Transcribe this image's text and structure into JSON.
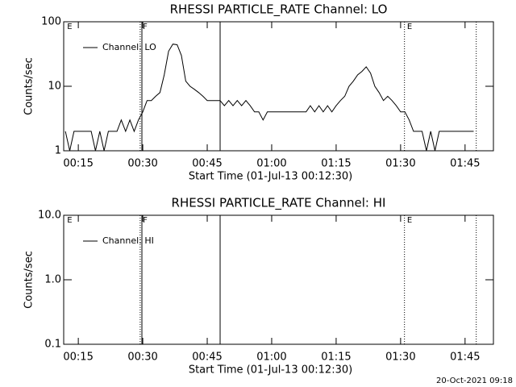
{
  "chart_data": [
    {
      "type": "line",
      "title": "RHESSI PARTICLE_RATE Channel: LO",
      "xlabel": "Start Time (01-Jul-13 00:12:30)",
      "ylabel": "Counts/sec",
      "ylog": true,
      "ylim": [
        1,
        100
      ],
      "yticks": [
        1,
        10,
        100
      ],
      "xlim": [
        11.6,
        111.6
      ],
      "xticks": [
        {
          "value": 15,
          "label": "00:15"
        },
        {
          "value": 30,
          "label": "00:30"
        },
        {
          "value": 45,
          "label": "00:45"
        },
        {
          "value": 60,
          "label": "01:00"
        },
        {
          "value": 75,
          "label": "01:15"
        },
        {
          "value": 90,
          "label": "01:30"
        },
        {
          "value": 105,
          "label": "01:45"
        }
      ],
      "legend": "top-left",
      "vlines": [
        {
          "x": 29.4,
          "style": "dotted"
        },
        {
          "x": 29.8,
          "style": "solid"
        },
        {
          "x": 48.0,
          "style": "solid"
        },
        {
          "x": 90.9,
          "style": "dotted"
        },
        {
          "x": 107.6,
          "style": "dotted"
        }
      ],
      "annotations": [
        {
          "text": "E",
          "x": 12.4
        },
        {
          "text": "F",
          "x": 30.0
        },
        {
          "text": "E",
          "x": 91.5
        }
      ],
      "series": [
        {
          "name": "Channel: LO",
          "color": "#000000",
          "x": [
            12,
            13,
            14,
            15,
            16,
            17,
            18,
            19,
            20,
            21,
            22,
            23,
            24,
            25,
            26,
            27,
            28,
            29,
            30,
            31,
            32,
            33,
            34,
            35,
            36,
            37,
            38,
            39,
            40,
            41,
            42,
            43,
            44,
            45,
            46,
            47,
            48,
            49,
            50,
            51,
            52,
            53,
            54,
            55,
            56,
            57,
            58,
            59,
            60,
            61,
            62,
            63,
            64,
            65,
            66,
            67,
            68,
            69,
            70,
            71,
            72,
            73,
            74,
            75,
            76,
            77,
            78,
            79,
            80,
            81,
            82,
            83,
            84,
            85,
            86,
            87,
            88,
            89,
            90,
            91,
            92,
            93,
            94,
            95,
            96,
            97,
            98,
            99,
            100,
            101,
            102,
            103,
            104,
            105,
            106,
            107
          ],
          "values": [
            2,
            1,
            2,
            2,
            2,
            2,
            2,
            1,
            2,
            1,
            2,
            2,
            2,
            3,
            2,
            3,
            2,
            3,
            4,
            6,
            6,
            7,
            8,
            15,
            35,
            45,
            44,
            30,
            12,
            10,
            9,
            8,
            7,
            6,
            6,
            6,
            6,
            5,
            6,
            5,
            6,
            5,
            6,
            5,
            4,
            4,
            3,
            4,
            4,
            4,
            4,
            4,
            4,
            4,
            4,
            4,
            4,
            5,
            4,
            5,
            4,
            5,
            4,
            5,
            6,
            7,
            10,
            12,
            15,
            17,
            20,
            16,
            10,
            8,
            6,
            7,
            6,
            5,
            4,
            4,
            3,
            2,
            2,
            2,
            1,
            2,
            1,
            2,
            2,
            2,
            2,
            2,
            2,
            2,
            2,
            2
          ]
        }
      ]
    },
    {
      "type": "line",
      "title": "RHESSI PARTICLE_RATE Channel: HI",
      "xlabel": "Start Time (01-Jul-13 00:12:30)",
      "ylabel": "Counts/sec",
      "ylog": true,
      "ylim": [
        0.1,
        10
      ],
      "yticks": [
        {
          "value": 0.1,
          "label": "0.1"
        },
        {
          "value": 1,
          "label": "1.0"
        },
        {
          "value": 10,
          "label": "10.0"
        }
      ],
      "xlim": [
        11.6,
        111.6
      ],
      "xticks": [
        {
          "value": 15,
          "label": "00:15"
        },
        {
          "value": 30,
          "label": "00:30"
        },
        {
          "value": 45,
          "label": "00:45"
        },
        {
          "value": 60,
          "label": "01:00"
        },
        {
          "value": 75,
          "label": "01:15"
        },
        {
          "value": 90,
          "label": "01:30"
        },
        {
          "value": 105,
          "label": "01:45"
        }
      ],
      "legend": "top-left",
      "vlines": [
        {
          "x": 29.4,
          "style": "dotted"
        },
        {
          "x": 29.8,
          "style": "solid"
        },
        {
          "x": 48.0,
          "style": "solid"
        },
        {
          "x": 90.9,
          "style": "dotted"
        },
        {
          "x": 107.6,
          "style": "dotted"
        }
      ],
      "annotations": [
        {
          "text": "E",
          "x": 12.4
        },
        {
          "text": "F",
          "x": 30.0
        },
        {
          "text": "E",
          "x": 91.5
        }
      ],
      "series": [
        {
          "name": "Channel: HI",
          "color": "#000000",
          "x": [],
          "values": []
        }
      ]
    }
  ],
  "footer": "20-Oct-2021 09:18"
}
